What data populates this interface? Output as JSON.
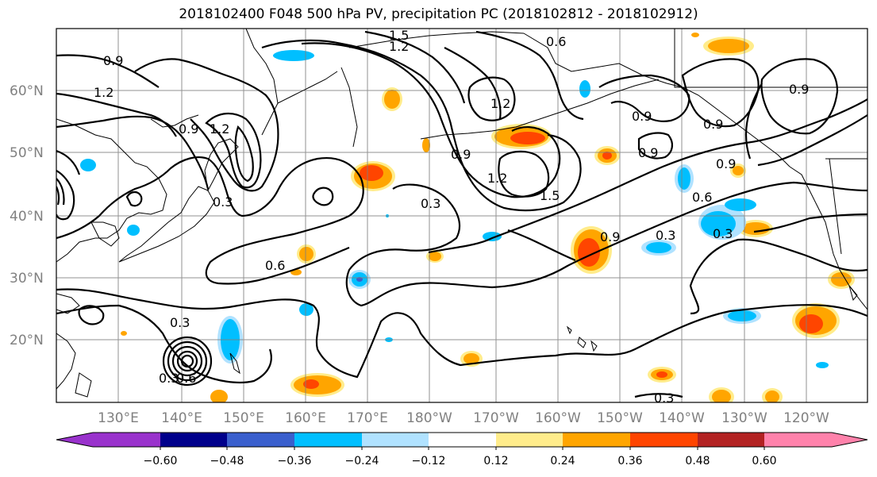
{
  "title": "2018102400 F048 500 hPa PV, precipitation PC (2018102812 - 2018102912)",
  "lat_labels": [
    "60°N",
    "50°N",
    "40°N",
    "30°N",
    "20°N"
  ],
  "lon_labels": [
    "130°E",
    "140°E",
    "150°E",
    "160°E",
    "170°E",
    "180°W",
    "170°W",
    "160°W",
    "150°W",
    "140°W",
    "130°W",
    "120°W"
  ],
  "contour_labels": [
    "1.2",
    "0.9",
    "1.5",
    "1.2",
    "0.6",
    "0.9",
    "1.2",
    "0.9",
    "0.9",
    "1.2",
    "1.5",
    "0.9",
    "0.9",
    "0.9",
    "0.6",
    "0.3",
    "0.3",
    "0.9",
    "0.3",
    "0.6",
    "0.3",
    "0.3",
    "0.3",
    "0.6",
    "0.3",
    "1.2",
    "0.9"
  ],
  "colorbar": {
    "ticks": [
      "−0.60",
      "−0.48",
      "−0.36",
      "−0.24",
      "−0.12",
      "0.12",
      "0.24",
      "0.36",
      "0.48",
      "0.60"
    ],
    "colors": [
      "#9932cc",
      "#00008b",
      "#3a5fcd",
      "#00bfff",
      "#b0e2ff",
      "#ffffff",
      "#ffec8b",
      "#ffa500",
      "#ff4500",
      "#b22222",
      "#ff82ab"
    ]
  },
  "colors": {
    "contour": "#000000",
    "grid": "#808080",
    "coast": "#000000"
  }
}
